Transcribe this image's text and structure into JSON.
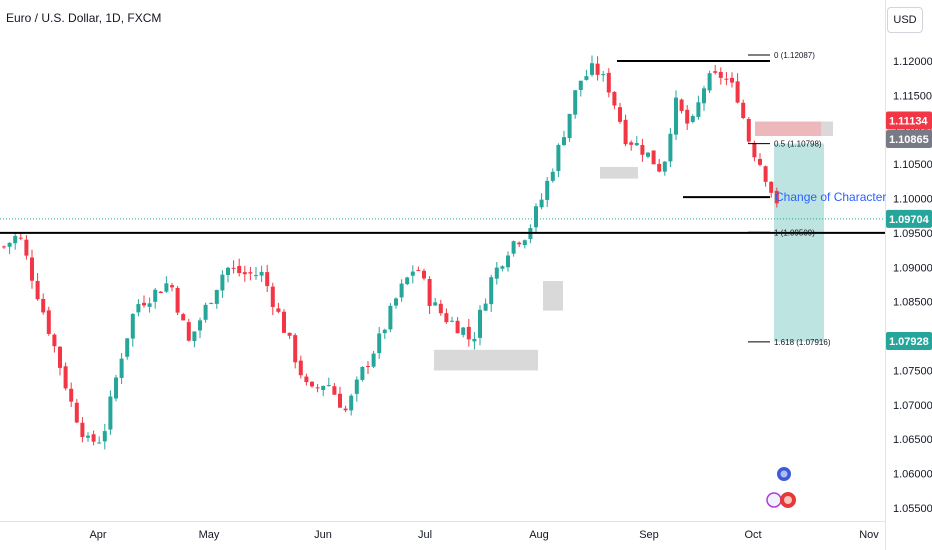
{
  "header": {
    "title": "Euro / U.S. Dollar, 1D, FXCM",
    "currency_button": "USD"
  },
  "colors": {
    "up": "#26a69a",
    "down": "#f23645",
    "grid_line": "#000000",
    "dotted_price": "#26a69a",
    "target_zone": "#b2dfdb",
    "supply_zone": "#f0b2b6",
    "gray_zone": "#d9d9d9",
    "annotation_blue": "#2962ff"
  },
  "chart_data": {
    "type": "candlestick",
    "x_labels": [
      "Apr",
      "May",
      "Jun",
      "Jul",
      "Aug",
      "Sep",
      "Oct",
      "Nov"
    ],
    "y_ticks": [
      "1.12000",
      "1.11500",
      "1.11000",
      "1.10500",
      "1.10000",
      "1.09500",
      "1.09000",
      "1.08500",
      "1.08000",
      "1.07500",
      "1.07000",
      "1.06500",
      "1.06000",
      "1.05500"
    ],
    "ylim": [
      1.054,
      1.1255
    ],
    "key_levels": {
      "horizontal_support": 1.095,
      "current_price_dotted": 1.09704,
      "choch_level": 1.1002,
      "range_high": 1.12
    },
    "price_labels": [
      {
        "text": "1.11134",
        "value": 1.11134,
        "color": "#f23645"
      },
      {
        "text": "1.10865",
        "value": 1.10865,
        "color": "#787b86"
      },
      {
        "text": "1.09704",
        "value": 1.09704,
        "color": "#26a69a"
      },
      {
        "text": "1.07928",
        "value": 1.07928,
        "color": "#26a69a"
      }
    ],
    "fib_levels": [
      {
        "label": "0 (1.12087)",
        "value": 1.12087
      },
      {
        "label": "0.5 (1.10798)",
        "value": 1.10798
      },
      {
        "label": "1 (1.09509)",
        "value": 1.09509
      },
      {
        "label": "1.618 (1.07916)",
        "value": 1.07916
      }
    ],
    "annotations": {
      "choch_text": "Change of Character"
    }
  }
}
